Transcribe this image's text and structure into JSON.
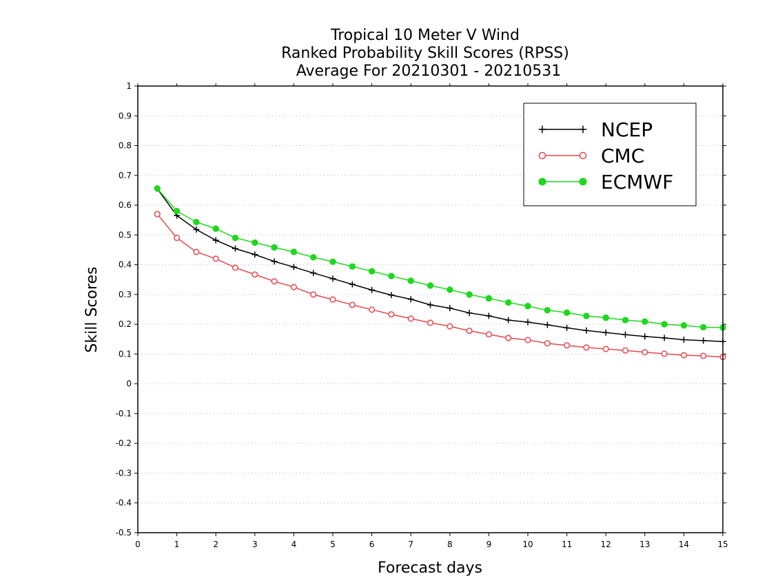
{
  "chart_data": {
    "type": "line",
    "title": [
      "Tropical 10 Meter V Wind",
      "Ranked Probability Skill Scores (RPSS)",
      "Average For 20210301 - 20210531"
    ],
    "xlabel": "Forecast days",
    "ylabel": "Skill Scores",
    "xlim": [
      0,
      15
    ],
    "ylim": [
      -0.5,
      1
    ],
    "xticks": [
      0,
      1,
      2,
      3,
      4,
      5,
      6,
      7,
      8,
      9,
      10,
      11,
      12,
      13,
      14,
      15
    ],
    "xtick_labels": [
      "0",
      "1",
      "2",
      "3",
      "4",
      "5",
      "6",
      "7",
      "8",
      "9",
      "10",
      "11",
      "12",
      "13",
      "14",
      "15"
    ],
    "yticks": [
      -0.5,
      -0.4,
      -0.3,
      -0.2,
      -0.1,
      0,
      0.1,
      0.2,
      0.3,
      0.4,
      0.5,
      0.6,
      0.7,
      0.8,
      0.9,
      1
    ],
    "ytick_labels": [
      "-0.5",
      "-0.4",
      "-0.3",
      "-0.2",
      "-0.1",
      "0",
      "0.1",
      "0.2",
      "0.3",
      "0.4",
      "0.5",
      "0.6",
      "0.7",
      "0.8",
      "0.9",
      "1"
    ],
    "grid": "horizontal dotted",
    "legend_position": "top-right",
    "x": [
      0.5,
      1,
      1.5,
      2,
      2.5,
      3,
      3.5,
      4,
      4.5,
      5,
      5.5,
      6,
      6.5,
      7,
      7.5,
      8,
      8.5,
      9,
      9.5,
      10,
      10.5,
      11,
      11.5,
      12,
      12.5,
      13,
      13.5,
      14,
      14.5,
      15
    ],
    "series": [
      {
        "name": "NCEP",
        "color": "#000000",
        "marker": "plus",
        "values": [
          0.655,
          0.565,
          0.518,
          0.482,
          0.454,
          0.434,
          0.411,
          0.392,
          0.372,
          0.353,
          0.334,
          0.315,
          0.298,
          0.284,
          0.265,
          0.254,
          0.238,
          0.228,
          0.214,
          0.207,
          0.198,
          0.188,
          0.179,
          0.172,
          0.165,
          0.159,
          0.154,
          0.148,
          0.145,
          0.142
        ]
      },
      {
        "name": "CMC",
        "color": "#e8474b",
        "marker": "open-circle",
        "values": [
          0.57,
          0.49,
          0.443,
          0.42,
          0.39,
          0.367,
          0.344,
          0.325,
          0.3,
          0.283,
          0.265,
          0.249,
          0.233,
          0.219,
          0.205,
          0.193,
          0.178,
          0.166,
          0.154,
          0.147,
          0.136,
          0.129,
          0.122,
          0.117,
          0.112,
          0.106,
          0.101,
          0.096,
          0.094,
          0.09
        ]
      },
      {
        "name": "ECMWF",
        "color": "#1ed81e",
        "marker": "filled-circle",
        "values": [
          0.656,
          0.58,
          0.543,
          0.521,
          0.49,
          0.474,
          0.458,
          0.443,
          0.425,
          0.41,
          0.394,
          0.378,
          0.362,
          0.346,
          0.33,
          0.316,
          0.3,
          0.287,
          0.273,
          0.261,
          0.247,
          0.239,
          0.228,
          0.222,
          0.214,
          0.209,
          0.2,
          0.196,
          0.19,
          0.189
        ]
      }
    ]
  }
}
